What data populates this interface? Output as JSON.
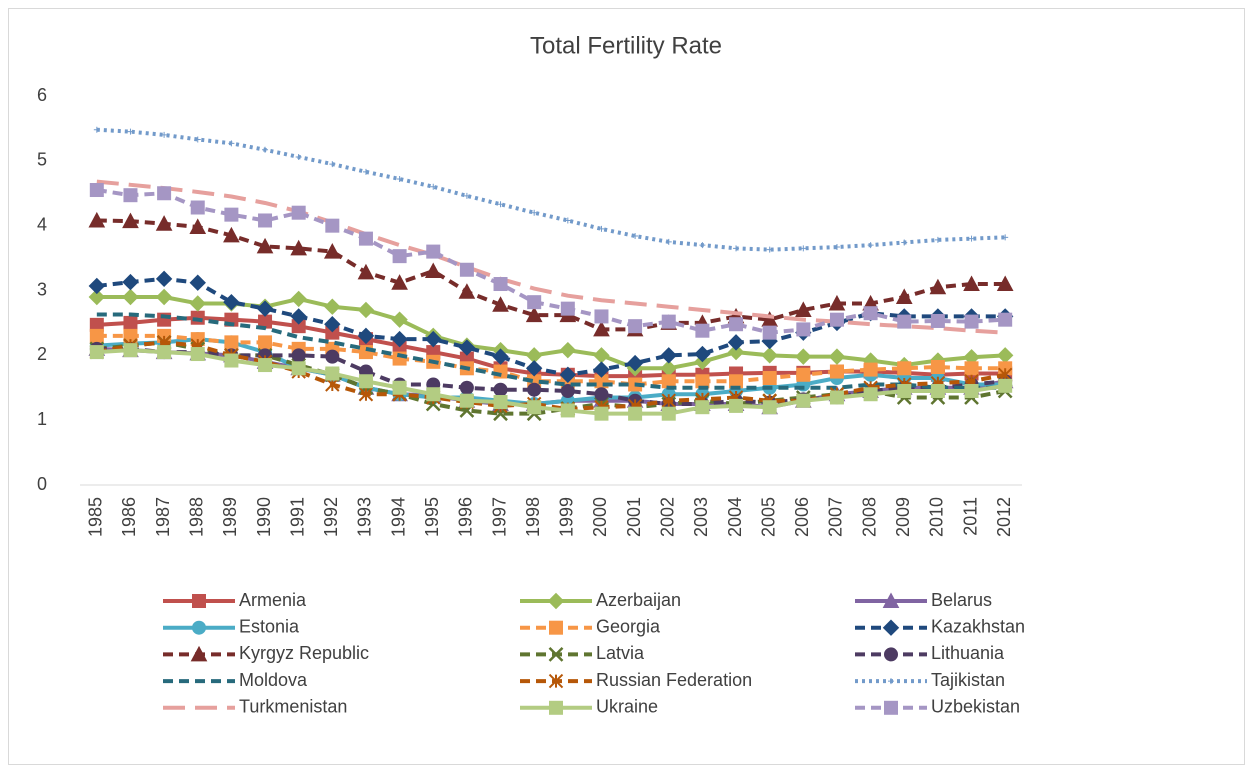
{
  "chart_data": {
    "type": "line",
    "title": "Total Fertility Rate",
    "categories": [
      "1985",
      "1986",
      "1987",
      "1988",
      "1989",
      "1990",
      "1991",
      "1992",
      "1993",
      "1994",
      "1995",
      "1996",
      "1997",
      "1998",
      "1999",
      "2000",
      "2001",
      "2002",
      "2003",
      "2004",
      "2005",
      "2006",
      "2007",
      "2008",
      "2009",
      "2010",
      "2011",
      "2012"
    ],
    "ylim": [
      0,
      6
    ],
    "yticks": [
      0,
      1,
      2,
      3,
      4,
      5,
      6
    ],
    "grid": false,
    "legend": "bottom",
    "series": [
      {
        "name": "Armenia",
        "color": "#c0504d",
        "dash": "solid",
        "marker": "square",
        "values": [
          2.47,
          2.5,
          2.55,
          2.58,
          2.55,
          2.52,
          2.45,
          2.35,
          2.25,
          2.15,
          2.05,
          1.95,
          1.8,
          1.72,
          1.7,
          1.68,
          1.68,
          1.7,
          1.7,
          1.72,
          1.73,
          1.73,
          1.75,
          1.75,
          1.73,
          1.7,
          1.72,
          1.72
        ]
      },
      {
        "name": "Azerbaijan",
        "color": "#9bbb59",
        "dash": "solid",
        "marker": "diamond",
        "values": [
          2.9,
          2.9,
          2.9,
          2.8,
          2.8,
          2.75,
          2.87,
          2.75,
          2.7,
          2.55,
          2.3,
          2.15,
          2.08,
          2.0,
          2.08,
          2.0,
          1.8,
          1.8,
          1.9,
          2.05,
          2.0,
          1.98,
          1.98,
          1.92,
          1.85,
          1.92,
          1.97,
          2.0
        ]
      },
      {
        "name": "Belarus",
        "color": "#8064a2",
        "dash": "solid",
        "marker": "triangle",
        "values": [
          2.1,
          2.08,
          2.05,
          2.03,
          2.0,
          1.9,
          1.8,
          1.7,
          1.5,
          1.4,
          1.38,
          1.3,
          1.25,
          1.25,
          1.3,
          1.3,
          1.3,
          1.25,
          1.25,
          1.25,
          1.2,
          1.3,
          1.4,
          1.45,
          1.5,
          1.5,
          1.5,
          1.6
        ]
      },
      {
        "name": "Estonia",
        "color": "#4bacc6",
        "dash": "solid",
        "marker": "circle",
        "values": [
          2.15,
          2.18,
          2.2,
          2.25,
          2.2,
          2.05,
          1.8,
          1.7,
          1.5,
          1.4,
          1.35,
          1.35,
          1.3,
          1.25,
          1.3,
          1.35,
          1.35,
          1.4,
          1.4,
          1.45,
          1.5,
          1.55,
          1.65,
          1.7,
          1.65,
          1.65,
          1.55,
          1.55
        ]
      },
      {
        "name": "Georgia",
        "color": "#f79646",
        "dash": "dash",
        "marker": "square",
        "values": [
          2.3,
          2.3,
          2.3,
          2.25,
          2.2,
          2.2,
          2.1,
          2.1,
          2.05,
          1.95,
          1.9,
          1.8,
          1.75,
          1.6,
          1.6,
          1.6,
          1.55,
          1.6,
          1.6,
          1.6,
          1.65,
          1.7,
          1.75,
          1.78,
          1.8,
          1.82,
          1.8,
          1.8
        ]
      },
      {
        "name": "Kazakhstan",
        "color": "#1f497d",
        "dash": "dash",
        "marker": "diamond",
        "values": [
          3.07,
          3.13,
          3.18,
          3.12,
          2.82,
          2.72,
          2.6,
          2.48,
          2.3,
          2.25,
          2.25,
          2.12,
          1.98,
          1.8,
          1.7,
          1.78,
          1.88,
          2.0,
          2.02,
          2.2,
          2.22,
          2.35,
          2.5,
          2.65,
          2.6,
          2.6,
          2.6,
          2.6
        ]
      },
      {
        "name": "Kyrgyz Republic",
        "color": "#772c2a",
        "dash": "dash",
        "marker": "triangle",
        "values": [
          4.08,
          4.07,
          4.03,
          3.98,
          3.85,
          3.68,
          3.65,
          3.6,
          3.28,
          3.12,
          3.3,
          2.98,
          2.78,
          2.62,
          2.62,
          2.4,
          2.4,
          2.5,
          2.5,
          2.6,
          2.55,
          2.7,
          2.8,
          2.8,
          2.9,
          3.05,
          3.1,
          3.1
        ]
      },
      {
        "name": "Latvia",
        "color": "#5f7530",
        "dash": "dash",
        "marker": "x",
        "values": [
          2.1,
          2.15,
          2.2,
          2.1,
          2.0,
          2.0,
          1.85,
          1.7,
          1.5,
          1.4,
          1.25,
          1.15,
          1.1,
          1.1,
          1.18,
          1.25,
          1.2,
          1.25,
          1.3,
          1.25,
          1.3,
          1.35,
          1.4,
          1.45,
          1.35,
          1.35,
          1.35,
          1.45
        ]
      },
      {
        "name": "Lithuania",
        "color": "#4d3b62",
        "dash": "dash",
        "marker": "circle",
        "values": [
          2.1,
          2.1,
          2.05,
          2.05,
          2.0,
          2.0,
          2.0,
          1.98,
          1.75,
          1.55,
          1.55,
          1.5,
          1.47,
          1.47,
          1.45,
          1.4,
          1.3,
          1.25,
          1.25,
          1.3,
          1.27,
          1.32,
          1.35,
          1.45,
          1.5,
          1.5,
          1.55,
          1.6
        ]
      },
      {
        "name": "Moldova",
        "color": "#276a7c",
        "dash": "dash",
        "marker": "none",
        "values": [
          2.63,
          2.63,
          2.6,
          2.55,
          2.48,
          2.42,
          2.28,
          2.2,
          2.1,
          2.0,
          1.9,
          1.8,
          1.7,
          1.6,
          1.55,
          1.55,
          1.55,
          1.5,
          1.5,
          1.5,
          1.5,
          1.5,
          1.5,
          1.55,
          1.55,
          1.5,
          1.5,
          1.5
        ]
      },
      {
        "name": "Russian Federation",
        "color": "#b65708",
        "dash": "dash",
        "marker": "star",
        "values": [
          2.05,
          2.15,
          2.2,
          2.15,
          2.0,
          1.9,
          1.75,
          1.55,
          1.4,
          1.4,
          1.35,
          1.28,
          1.22,
          1.25,
          1.17,
          1.2,
          1.22,
          1.3,
          1.32,
          1.35,
          1.3,
          1.3,
          1.4,
          1.5,
          1.55,
          1.57,
          1.6,
          1.7
        ]
      },
      {
        "name": "Tajikistan",
        "color": "#729aca",
        "dash": "dot",
        "marker": "plus",
        "values": [
          5.48,
          5.45,
          5.4,
          5.33,
          5.27,
          5.17,
          5.06,
          4.95,
          4.83,
          4.72,
          4.6,
          4.46,
          4.33,
          4.2,
          4.08,
          3.95,
          3.84,
          3.75,
          3.7,
          3.65,
          3.63,
          3.65,
          3.67,
          3.7,
          3.74,
          3.78,
          3.8,
          3.82
        ]
      },
      {
        "name": "Turkmenistan",
        "color": "#e6a09d",
        "dash": "longdash",
        "marker": "none",
        "values": [
          4.68,
          4.63,
          4.58,
          4.52,
          4.45,
          4.35,
          4.22,
          4.05,
          3.87,
          3.7,
          3.55,
          3.36,
          3.18,
          3.03,
          2.92,
          2.85,
          2.8,
          2.75,
          2.7,
          2.65,
          2.6,
          2.55,
          2.52,
          2.48,
          2.45,
          2.42,
          2.38,
          2.35
        ]
      },
      {
        "name": "Ukraine",
        "color": "#b3cc82",
        "dash": "solid",
        "marker": "square",
        "values": [
          2.05,
          2.08,
          2.05,
          2.02,
          1.92,
          1.85,
          1.8,
          1.72,
          1.6,
          1.5,
          1.4,
          1.3,
          1.28,
          1.2,
          1.15,
          1.1,
          1.1,
          1.1,
          1.2,
          1.22,
          1.2,
          1.3,
          1.35,
          1.4,
          1.45,
          1.45,
          1.45,
          1.53
        ]
      },
      {
        "name": "Uzbekistan",
        "color": "#a596c4",
        "dash": "dash",
        "marker": "square",
        "values": [
          4.55,
          4.47,
          4.5,
          4.28,
          4.17,
          4.08,
          4.2,
          4.0,
          3.8,
          3.53,
          3.6,
          3.32,
          3.1,
          2.82,
          2.72,
          2.6,
          2.45,
          2.52,
          2.38,
          2.48,
          2.35,
          2.4,
          2.55,
          2.65,
          2.52,
          2.53,
          2.52,
          2.55
        ]
      }
    ]
  }
}
